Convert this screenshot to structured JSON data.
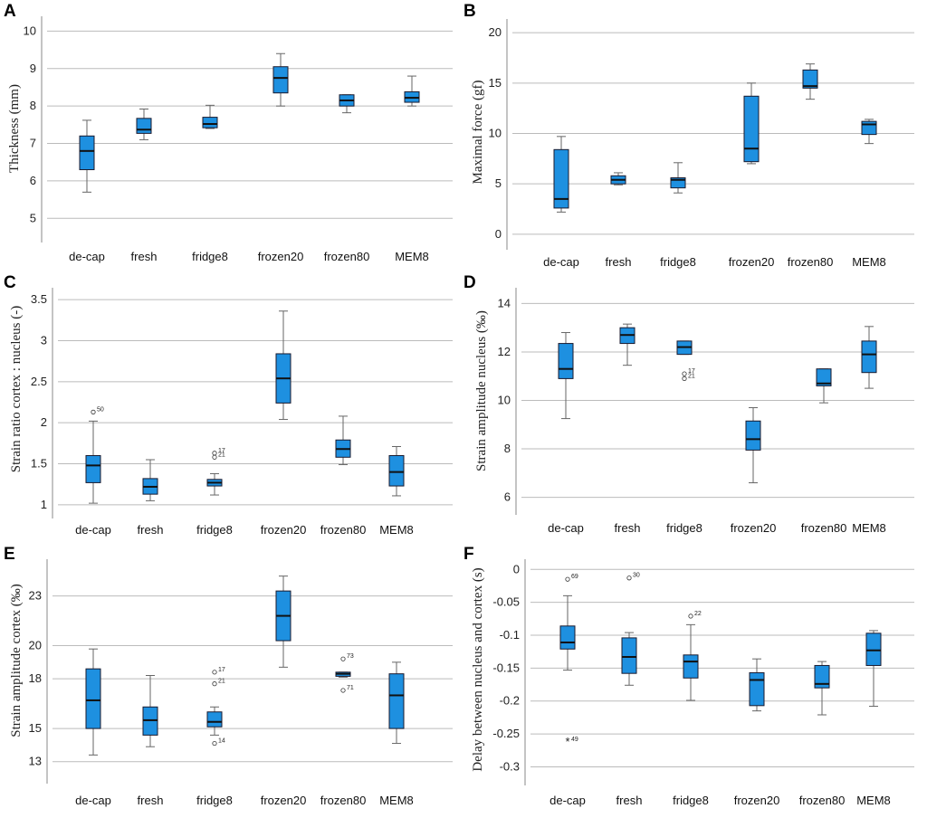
{
  "figure": {
    "colors": {
      "box_fill": "#1e90e0",
      "box_stroke": "#1a1a2e",
      "grid": "#bbbbbb",
      "axis": "#888888",
      "whisker": "#666666"
    }
  },
  "chart_data": [
    {
      "panel": "A",
      "type": "box",
      "title": "",
      "xlabel": "",
      "ylabel": "Thickness (mm)",
      "ylim": [
        4.5,
        10.3
      ],
      "yticks": [
        5,
        6,
        7,
        8,
        9,
        10
      ],
      "categories": [
        "de-cap",
        "fresh",
        "fridge8",
        "frozen20",
        "frozen80",
        "MEM8"
      ],
      "boxes": [
        {
          "min": 5.7,
          "q1": 6.3,
          "median": 6.8,
          "q3": 7.2,
          "max": 7.62,
          "outliers": []
        },
        {
          "min": 7.1,
          "q1": 7.27,
          "median": 7.37,
          "q3": 7.67,
          "max": 7.92,
          "outliers": []
        },
        {
          "min": 7.4,
          "q1": 7.42,
          "median": 7.52,
          "q3": 7.7,
          "max": 8.02,
          "outliers": []
        },
        {
          "min": 8.0,
          "q1": 8.35,
          "median": 8.75,
          "q3": 9.05,
          "max": 9.4,
          "outliers": []
        },
        {
          "min": 7.82,
          "q1": 8.0,
          "median": 8.15,
          "q3": 8.3,
          "max": 8.3,
          "outliers": []
        },
        {
          "min": 8.0,
          "q1": 8.1,
          "median": 8.22,
          "q3": 8.38,
          "max": 8.8,
          "outliers": []
        }
      ]
    },
    {
      "panel": "B",
      "type": "box",
      "title": "",
      "xlabel": "",
      "ylabel": "Maximal force (gf)",
      "ylim": [
        -1,
        21
      ],
      "yticks": [
        0,
        5,
        10,
        15,
        20
      ],
      "categories": [
        "de-cap",
        "fresh",
        "fridge8",
        "frozen20",
        "frozen80",
        "MEM8"
      ],
      "boxes": [
        {
          "min": 2.2,
          "q1": 2.6,
          "median": 3.5,
          "q3": 8.4,
          "max": 9.7,
          "outliers": []
        },
        {
          "min": 4.9,
          "q1": 5.0,
          "median": 5.4,
          "q3": 5.8,
          "max": 6.1,
          "outliers": []
        },
        {
          "min": 4.1,
          "q1": 4.6,
          "median": 5.4,
          "q3": 5.6,
          "max": 7.1,
          "outliers": []
        },
        {
          "min": 7.0,
          "q1": 7.2,
          "median": 8.5,
          "q3": 13.7,
          "max": 15.0,
          "outliers": []
        },
        {
          "min": 13.4,
          "q1": 14.5,
          "median": 14.7,
          "q3": 16.3,
          "max": 16.9,
          "outliers": []
        },
        {
          "min": 9.0,
          "q1": 9.9,
          "median": 10.9,
          "q3": 11.2,
          "max": 11.4,
          "outliers": []
        }
      ]
    },
    {
      "panel": "C",
      "type": "box",
      "title": "",
      "xlabel": "",
      "ylabel": "Strain ratio cortex : nucleus (-)",
      "ylim": [
        0.9,
        3.6
      ],
      "yticks": [
        1,
        1.5,
        2,
        2.5,
        3,
        3.5
      ],
      "ytick_labels": [
        "1",
        "1.5",
        "2",
        "2.5",
        "3",
        "3.5"
      ],
      "categories": [
        "de-cap",
        "fresh",
        "fridge8",
        "frozen20",
        "frozen80",
        "MEM8"
      ],
      "boxes": [
        {
          "min": 1.02,
          "q1": 1.27,
          "median": 1.48,
          "q3": 1.6,
          "max": 2.02,
          "outliers": [
            {
              "value": 2.13,
              "label": "50"
            }
          ]
        },
        {
          "min": 1.05,
          "q1": 1.13,
          "median": 1.22,
          "q3": 1.32,
          "max": 1.55,
          "outliers": []
        },
        {
          "min": 1.12,
          "q1": 1.23,
          "median": 1.27,
          "q3": 1.31,
          "max": 1.38,
          "outliers": [
            {
              "value": 1.63,
              "label": "17"
            },
            {
              "value": 1.58,
              "label": "21"
            }
          ]
        },
        {
          "min": 2.04,
          "q1": 2.24,
          "median": 2.54,
          "q3": 2.84,
          "max": 3.36,
          "outliers": []
        },
        {
          "min": 1.49,
          "q1": 1.58,
          "median": 1.68,
          "q3": 1.79,
          "max": 2.08,
          "outliers": []
        },
        {
          "min": 1.11,
          "q1": 1.23,
          "median": 1.4,
          "q3": 1.6,
          "max": 1.71,
          "outliers": []
        }
      ]
    },
    {
      "panel": "D",
      "type": "box",
      "title": "",
      "xlabel": "",
      "ylabel": "Strain amplitude nucleus (‰)",
      "ylim": [
        5.5,
        14.5
      ],
      "yticks": [
        6,
        8,
        10,
        12,
        14
      ],
      "categories": [
        "de-cap",
        "fresh",
        "fridge8",
        "frozen20",
        "frozen80",
        "MEM8"
      ],
      "boxes": [
        {
          "min": 9.25,
          "q1": 10.9,
          "median": 11.3,
          "q3": 12.35,
          "max": 12.8,
          "outliers": []
        },
        {
          "min": 11.45,
          "q1": 12.35,
          "median": 12.7,
          "q3": 13.0,
          "max": 13.15,
          "outliers": []
        },
        {
          "min": 11.9,
          "q1": 11.9,
          "median": 12.2,
          "q3": 12.45,
          "max": 12.45,
          "outliers": [
            {
              "value": 11.1,
              "label": "17"
            },
            {
              "value": 10.9,
              "label": "21"
            }
          ]
        },
        {
          "min": 6.6,
          "q1": 7.95,
          "median": 8.4,
          "q3": 9.15,
          "max": 9.7,
          "outliers": []
        },
        {
          "min": 9.9,
          "q1": 10.6,
          "median": 10.7,
          "q3": 11.3,
          "max": 11.3,
          "outliers": []
        },
        {
          "min": 10.5,
          "q1": 11.15,
          "median": 11.9,
          "q3": 12.45,
          "max": 13.05,
          "outliers": []
        }
      ]
    },
    {
      "panel": "E",
      "type": "box",
      "title": "",
      "xlabel": "",
      "ylabel": "Strain amplitude cortex (‰)",
      "ylim": [
        12,
        25
      ],
      "yticks": [
        13,
        15,
        18,
        20,
        23
      ],
      "categories": [
        "de-cap",
        "fresh",
        "fridge8",
        "frozen20",
        "frozen80",
        "MEM8"
      ],
      "boxes": [
        {
          "min": 13.4,
          "q1": 15.0,
          "median": 16.7,
          "q3": 18.6,
          "max": 19.8,
          "outliers": []
        },
        {
          "min": 13.9,
          "q1": 14.6,
          "median": 15.5,
          "q3": 16.3,
          "max": 18.2,
          "outliers": []
        },
        {
          "min": 14.6,
          "q1": 15.1,
          "median": 15.4,
          "q3": 16.0,
          "max": 16.3,
          "outliers": [
            {
              "value": 18.4,
              "label": "17"
            },
            {
              "value": 17.7,
              "label": "21"
            },
            {
              "value": 14.1,
              "label": "14"
            }
          ]
        },
        {
          "min": 18.7,
          "q1": 20.3,
          "median": 21.8,
          "q3": 23.3,
          "max": 24.2,
          "outliers": []
        },
        {
          "min": 18.1,
          "q1": 18.15,
          "median": 18.3,
          "q3": 18.4,
          "max": 18.4,
          "outliers": [
            {
              "value": 19.2,
              "label": "73"
            },
            {
              "value": 17.3,
              "label": "71"
            }
          ]
        },
        {
          "min": 14.1,
          "q1": 15.0,
          "median": 17.0,
          "q3": 18.3,
          "max": 19.0,
          "outliers": []
        }
      ]
    },
    {
      "panel": "F",
      "type": "box",
      "title": "",
      "xlabel": "",
      "ylabel": "Delay between nucleus and cortex (s)",
      "ylim": [
        -0.32,
        0.01
      ],
      "yticks": [
        0,
        -0.05,
        -0.1,
        -0.15,
        -0.2,
        -0.25,
        -0.3
      ],
      "ytick_labels": [
        "0",
        "-0.05",
        "-0.1",
        "-0.15",
        "-0.2",
        "-0.25",
        "-0.3"
      ],
      "categories": [
        "de-cap",
        "fresh",
        "fridge8",
        "frozen20",
        "frozen80",
        "MEM8"
      ],
      "boxes": [
        {
          "min": -0.153,
          "q1": -0.121,
          "median": -0.111,
          "q3": -0.086,
          "max": -0.04,
          "outliers": [
            {
              "value": -0.015,
              "label": "69",
              "marker": "circle"
            },
            {
              "value": -0.262,
              "label": "49",
              "marker": "star"
            }
          ]
        },
        {
          "min": -0.176,
          "q1": -0.158,
          "median": -0.133,
          "q3": -0.104,
          "max": -0.096,
          "outliers": [
            {
              "value": -0.013,
              "label": "30",
              "marker": "circle"
            }
          ]
        },
        {
          "min": -0.199,
          "q1": -0.165,
          "median": -0.14,
          "q3": -0.13,
          "max": -0.084,
          "outliers": [
            {
              "value": -0.071,
              "label": "22",
              "marker": "circle"
            }
          ]
        },
        {
          "min": -0.215,
          "q1": -0.207,
          "median": -0.168,
          "q3": -0.157,
          "max": -0.136,
          "outliers": []
        },
        {
          "min": -0.221,
          "q1": -0.18,
          "median": -0.174,
          "q3": -0.146,
          "max": -0.14,
          "outliers": []
        },
        {
          "min": -0.208,
          "q1": -0.146,
          "median": -0.123,
          "q3": -0.097,
          "max": -0.093,
          "outliers": []
        }
      ]
    }
  ]
}
